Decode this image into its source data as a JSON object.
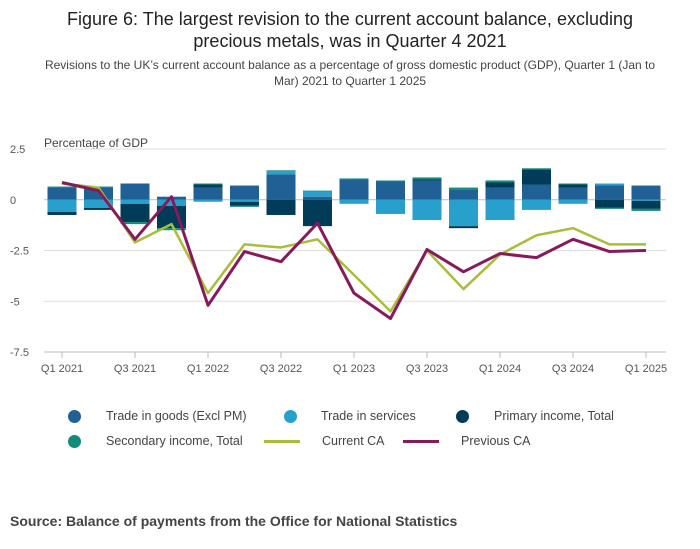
{
  "title_lines": [
    "Figure 6: The largest revision to the current account balance, excluding",
    "precious metals, was in Quarter 4 2021"
  ],
  "subtitle_lines": [
    "Revisions to the UK’s current account balance as a percentage of gross domestic product (GDP), Quarter 1 (Jan to",
    "Mar) 2021 to Quarter 1 2025"
  ],
  "source": "Source: Balance of payments from the Office for National Statistics",
  "colors": {
    "trade_goods": "#206095",
    "trade_services": "#27a0cc",
    "primary_income": "#003c57",
    "secondary_income": "#118c7b",
    "current_ca": "#a8bd3a",
    "previous_ca": "#871a5b",
    "grid": "#dddddd",
    "axis": "#bbbbbb"
  },
  "chart_data": {
    "type": "bar",
    "stacked": true,
    "title": "Figure 6: The largest revision to the current account balance, excluding precious metals, was in Quarter 4 2021",
    "ylabel": "Percentage of GDP",
    "xlabel": "",
    "ylim": [
      -7.5,
      2.5
    ],
    "yticks": [
      2.5,
      0,
      -2.5,
      -5,
      -7.5
    ],
    "ytick_labels": [
      "2.5",
      "0",
      "-2.5",
      "-5",
      "-7.5"
    ],
    "categories": [
      "Q1 2021",
      "Q2 2021",
      "Q3 2021",
      "Q4 2021",
      "Q1 2022",
      "Q2 2022",
      "Q3 2022",
      "Q4 2022",
      "Q1 2023",
      "Q2 2023",
      "Q3 2023",
      "Q4 2023",
      "Q1 2024",
      "Q2 2024",
      "Q3 2024",
      "Q4 2024",
      "Q1 2025"
    ],
    "xtick_labels": [
      "Q1 2021",
      "Q3 2021",
      "Q1 2022",
      "Q3 2022",
      "Q1 2023",
      "Q3 2023",
      "Q1 2024",
      "Q3 2024",
      "Q1 2025"
    ],
    "series": [
      {
        "name": "Trade in goods (Excl PM)",
        "kind": "bar",
        "color_key": "trade_goods",
        "values": [
          0.6,
          0.6,
          0.8,
          0.15,
          0.6,
          0.7,
          1.25,
          0.15,
          1.0,
          0.9,
          0.95,
          0.5,
          0.6,
          0.75,
          0.6,
          0.7,
          0.7
        ]
      },
      {
        "name": "Trade in services",
        "kind": "bar",
        "color_key": "trade_services",
        "values": [
          -0.6,
          -0.4,
          -0.2,
          -0.3,
          -0.1,
          -0.1,
          0.15,
          0.25,
          -0.2,
          -0.7,
          -1.0,
          -1.3,
          -1.0,
          -0.5,
          -0.2,
          0.1,
          -0.05
        ]
      },
      {
        "name": "Primary income, Total",
        "kind": "bar",
        "color_key": "primary_income",
        "values": [
          -0.15,
          -0.1,
          -0.9,
          -1.1,
          0.15,
          -0.2,
          -0.75,
          -1.3,
          0.0,
          0.0,
          0.05,
          -0.1,
          0.25,
          0.75,
          0.15,
          -0.4,
          -0.4
        ]
      },
      {
        "name": "Secondary income, Total",
        "kind": "bar",
        "color_key": "secondary_income",
        "values": [
          0.05,
          0.05,
          -0.1,
          -0.1,
          0.05,
          -0.05,
          0.05,
          0.05,
          0.05,
          0.05,
          0.1,
          0.1,
          0.1,
          0.05,
          0.05,
          -0.05,
          -0.1
        ]
      },
      {
        "name": "Current CA",
        "kind": "line",
        "color_key": "current_ca",
        "values": [
          0.8,
          0.6,
          -2.1,
          -1.2,
          -4.6,
          -2.2,
          -2.35,
          -1.95,
          -3.7,
          -5.5,
          -2.5,
          -4.4,
          -2.7,
          -1.75,
          -1.4,
          -2.2,
          -2.2
        ]
      },
      {
        "name": "Previous CA",
        "kind": "line",
        "color_key": "previous_ca",
        "values": [
          0.85,
          0.45,
          -1.95,
          0.15,
          -5.2,
          -2.55,
          -3.05,
          -1.15,
          -4.6,
          -5.85,
          -2.45,
          -3.55,
          -2.65,
          -2.85,
          -1.95,
          -2.55,
          -2.5
        ]
      }
    ],
    "legend_position": "bottom",
    "grid": true
  }
}
